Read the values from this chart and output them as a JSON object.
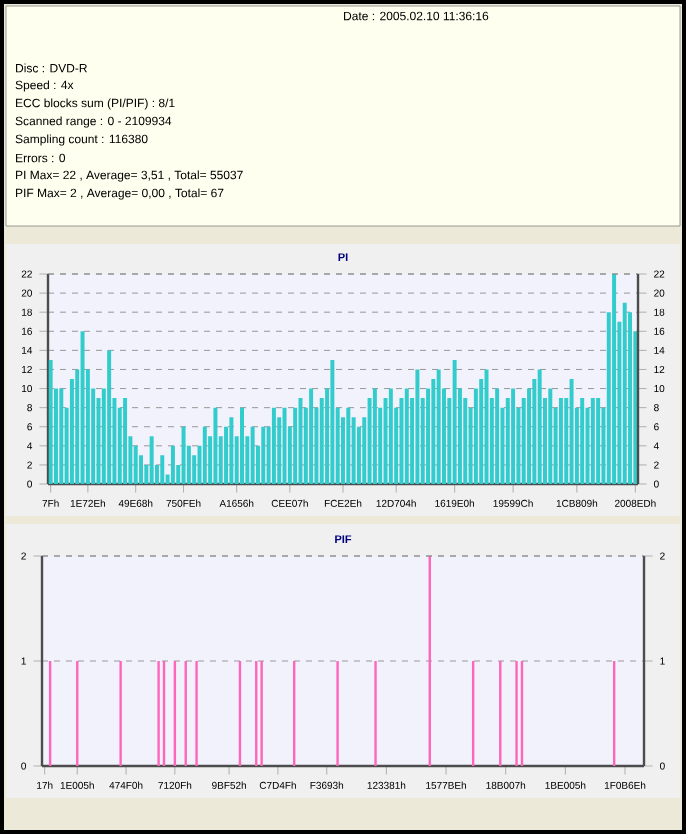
{
  "chart_data": [
    {
      "type": "other",
      "annotations": [
        "Date : 2005.02.10 11:36:16",
        "Disc : DVD-R",
        "Speed : 4x",
        "ECC blocks sum (PI/PIF) : 8/1",
        "Scanned range : 0 - 2109934",
        "Sampling count : 116380",
        "Errors : 0",
        "PI Max= 22 , Average= 3,51 , Total= 55037",
        "PIF Max= 2 , Average= 0,00 , Total= 67"
      ]
    },
    {
      "type": "bar",
      "title": "PI",
      "color": "#33cccc",
      "grid": "y",
      "categories": [
        "7Fh",
        null,
        null,
        null,
        null,
        null,
        null,
        "1E72Eh",
        null,
        null,
        null,
        null,
        null,
        null,
        null,
        null,
        "49E68h",
        null,
        null,
        null,
        null,
        null,
        null,
        null,
        null,
        "750FEh",
        null,
        null,
        null,
        null,
        null,
        null,
        null,
        null,
        null,
        "A1656h",
        null,
        null,
        null,
        null,
        null,
        null,
        null,
        null,
        null,
        "CEE07h",
        null,
        null,
        null,
        null,
        null,
        null,
        null,
        null,
        null,
        "FCE2Eh",
        null,
        null,
        null,
        null,
        null,
        null,
        null,
        null,
        null,
        "12D704h",
        null,
        null,
        null,
        null,
        null,
        null,
        null,
        null,
        null,
        null,
        "1619E0h",
        null,
        null,
        null,
        null,
        null,
        null,
        null,
        null,
        null,
        null,
        "19599Ch",
        null,
        null,
        null,
        null,
        null,
        null,
        null,
        null,
        null,
        null,
        null,
        "1CB809h",
        null,
        null,
        null,
        null,
        null,
        null,
        null,
        null,
        null,
        null,
        "2008EDh"
      ],
      "values": [
        13,
        10,
        10,
        8,
        11,
        12,
        16,
        12,
        10,
        9,
        10,
        14,
        9,
        8,
        9,
        5,
        4,
        3,
        2,
        5,
        2,
        3,
        1,
        4,
        2,
        6,
        4,
        3,
        4,
        6,
        5,
        8,
        5,
        6,
        7,
        5,
        8,
        5,
        6,
        4,
        6,
        6,
        8,
        7,
        8,
        6,
        8,
        9,
        8,
        10,
        8,
        9,
        10,
        13,
        8,
        7,
        8,
        7,
        6,
        7,
        9,
        10,
        8,
        9,
        10,
        8,
        9,
        10,
        9,
        12,
        9,
        10,
        11,
        12,
        10,
        9,
        13,
        10,
        9,
        8,
        10,
        11,
        12,
        9,
        10,
        8,
        9,
        10,
        8,
        9,
        10,
        11,
        12,
        9,
        10,
        8,
        9,
        9,
        11,
        8,
        9,
        8,
        9,
        9,
        8,
        18,
        22,
        17,
        19,
        18,
        16
      ],
      "ylim": [
        0,
        22
      ],
      "yticks": [
        0,
        2,
        4,
        6,
        8,
        10,
        12,
        14,
        16,
        18,
        20,
        22
      ],
      "y2lim": [
        0,
        22
      ],
      "y2ticks": [
        0,
        2,
        4,
        6,
        8,
        10,
        12,
        14,
        16,
        18,
        20,
        22
      ]
    },
    {
      "type": "bar",
      "title": "PIF",
      "color": "#ff66bb",
      "grid": "y",
      "categories": [
        "17h",
        null,
        null,
        null,
        null,
        null,
        "1E005h",
        null,
        null,
        null,
        null,
        null,
        null,
        null,
        null,
        "474F0h",
        null,
        null,
        null,
        null,
        null,
        null,
        null,
        null,
        "7120Fh",
        null,
        null,
        null,
        null,
        null,
        null,
        null,
        null,
        null,
        "9BF52h",
        null,
        null,
        null,
        null,
        null,
        null,
        null,
        null,
        "C7D4Fh",
        null,
        null,
        null,
        null,
        null,
        null,
        null,
        null,
        "F3693h",
        null,
        null,
        null,
        null,
        null,
        null,
        null,
        null,
        null,
        null,
        "123381h",
        null,
        null,
        null,
        null,
        null,
        null,
        null,
        null,
        null,
        null,
        "1577BEh",
        null,
        null,
        null,
        null,
        null,
        null,
        null,
        null,
        null,
        null,
        "18B007h",
        null,
        null,
        null,
        null,
        null,
        null,
        null,
        null,
        null,
        null,
        "1BE005h",
        null,
        null,
        null,
        null,
        null,
        null,
        null,
        null,
        null,
        null,
        "1F0B6Eh",
        null,
        null,
        null
      ],
      "values": [
        0,
        1,
        0,
        0,
        0,
        0,
        1,
        0,
        0,
        0,
        0,
        0,
        0,
        0,
        1,
        0,
        0,
        0,
        0,
        0,
        0,
        1,
        1,
        0,
        1,
        0,
        1,
        0,
        1,
        0,
        0,
        0,
        0,
        0,
        0,
        0,
        1,
        0,
        0,
        1,
        1,
        0,
        0,
        0,
        0,
        0,
        1,
        0,
        0,
        0,
        0,
        0,
        0,
        0,
        1,
        0,
        0,
        0,
        0,
        0,
        0,
        1,
        0,
        0,
        0,
        0,
        0,
        0,
        0,
        0,
        0,
        2,
        0,
        0,
        0,
        0,
        0,
        0,
        0,
        1,
        0,
        0,
        0,
        0,
        1,
        0,
        0,
        1,
        1,
        0,
        0,
        0,
        0,
        0,
        0,
        0,
        0,
        0,
        0,
        0,
        0,
        0,
        0,
        0,
        0,
        1,
        0,
        0,
        0,
        0,
        0
      ],
      "ylim": [
        0,
        2
      ],
      "yticks": [
        0,
        1,
        2
      ],
      "y2lim": [
        0,
        2
      ],
      "y2ticks": [
        0,
        1,
        2
      ]
    }
  ]
}
